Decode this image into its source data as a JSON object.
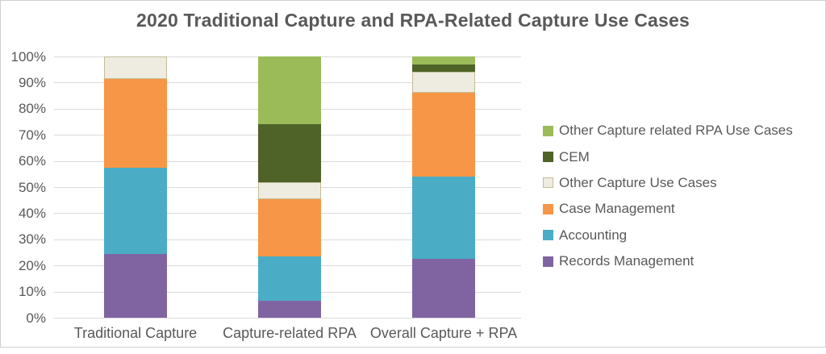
{
  "title": "2020 Traditional Capture and RPA-Related Capture Use Cases",
  "colors": {
    "title_text": "#595959",
    "axis_text": "#595959",
    "gridline": "#D9D9D9",
    "frame_border": "#D0CECE",
    "background": "#FFFFFF"
  },
  "y_axis": {
    "tick_labels": [
      "100%",
      "90%",
      "80%",
      "70%",
      "60%",
      "50%",
      "40%",
      "30%",
      "20%",
      "10%",
      "0%"
    ]
  },
  "chart_data": {
    "type": "bar",
    "stacked": true,
    "percent_stacked": true,
    "title": "2020 Traditional Capture and RPA-Related Capture Use Cases",
    "categories": [
      "Traditional Capture",
      "Capture-related RPA",
      "Overall Capture + RPA"
    ],
    "series": [
      {
        "name": "Records Management",
        "color": "#8064A2",
        "values": [
          24.5,
          6.5,
          22.5
        ]
      },
      {
        "name": "Accounting",
        "color": "#4BACC6",
        "values": [
          33,
          17,
          31.5
        ]
      },
      {
        "name": "Case Management",
        "color": "#F79646",
        "values": [
          34,
          22,
          32
        ]
      },
      {
        "name": "Other Capture Use Cases",
        "color": "#EEECE1",
        "border_color": "#C4BD97",
        "values": [
          8.5,
          6.5,
          8
        ]
      },
      {
        "name": "CEM",
        "color": "#4F6228",
        "values": [
          0,
          22,
          3
        ]
      },
      {
        "name": "Other Capture related RPA Use Cases",
        "color": "#9BBB59",
        "values": [
          0,
          26,
          3
        ]
      }
    ],
    "xlabel": "",
    "ylabel": "",
    "ylim": [
      0,
      100
    ],
    "y_tick_step": 10,
    "y_tick_format": "percent",
    "grid": true,
    "legend_position": "right",
    "legend_order_top_to_bottom": [
      "Other Capture related RPA Use Cases",
      "CEM",
      "Other Capture Use Cases",
      "Case Management",
      "Accounting",
      "Records Management"
    ]
  }
}
